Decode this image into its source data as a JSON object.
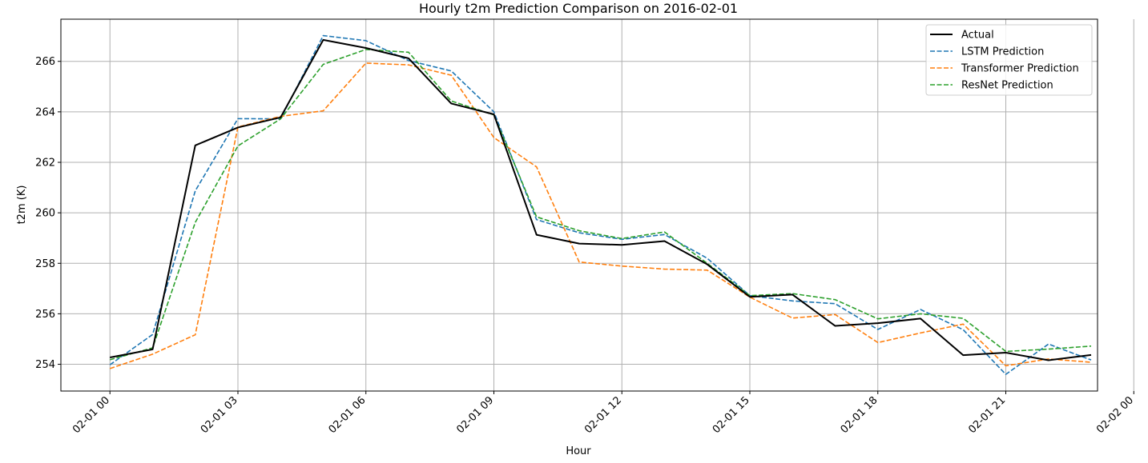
{
  "chart_data": {
    "type": "line",
    "title": "Hourly t2m Prediction Comparison on 2016-02-01",
    "xlabel": "Hour",
    "ylabel": "t2m (K)",
    "xlim": [
      -1.15,
      23.15
    ],
    "ylim": [
      252.94,
      267.67
    ],
    "grid": true,
    "legend_position": "top-right",
    "x": [
      0,
      1,
      2,
      3,
      4,
      5,
      6,
      7,
      8,
      9,
      10,
      11,
      12,
      13,
      14,
      15,
      16,
      17,
      18,
      19,
      20,
      21,
      22,
      23
    ],
    "x_ticks": [
      0,
      3,
      6,
      9,
      12,
      15,
      18,
      21,
      24
    ],
    "x_tick_labels": [
      "02-01 00",
      "02-01 03",
      "02-01 06",
      "02-01 09",
      "02-01 12",
      "02-01 15",
      "02-01 18",
      "02-01 21",
      "02-02 00"
    ],
    "y_ticks": [
      254,
      256,
      258,
      260,
      262,
      264,
      266
    ],
    "y_tick_labels": [
      "254",
      "256",
      "258",
      "260",
      "262",
      "264",
      "266"
    ],
    "series": [
      {
        "name": "Actual",
        "color": "#000000",
        "style": "solid",
        "values": [
          254.27,
          254.59,
          262.67,
          263.38,
          263.78,
          266.85,
          266.53,
          266.12,
          264.33,
          263.9,
          259.13,
          258.78,
          258.73,
          258.88,
          257.96,
          256.67,
          256.76,
          255.52,
          255.63,
          255.81,
          254.36,
          254.46,
          254.16,
          254.37
        ]
      },
      {
        "name": "LSTM Prediction",
        "color": "#1f77b4",
        "style": "dashed",
        "values": [
          253.98,
          255.18,
          260.87,
          263.73,
          263.72,
          267.02,
          266.82,
          266.03,
          265.62,
          264.0,
          259.73,
          259.21,
          258.95,
          259.14,
          258.2,
          256.72,
          256.51,
          256.4,
          255.38,
          256.17,
          255.37,
          253.6,
          254.8,
          254.17
        ]
      },
      {
        "name": "Transformer Prediction",
        "color": "#ff7f0e",
        "style": "dashed",
        "values": [
          253.83,
          254.4,
          255.17,
          263.4,
          263.82,
          264.04,
          265.93,
          265.86,
          265.45,
          262.98,
          261.82,
          258.05,
          257.89,
          257.77,
          257.73,
          256.66,
          255.83,
          255.97,
          254.86,
          255.24,
          255.59,
          253.94,
          254.21,
          254.08
        ]
      },
      {
        "name": "ResNet Prediction",
        "color": "#2ca02c",
        "style": "dashed",
        "values": [
          254.18,
          254.65,
          259.62,
          262.65,
          263.72,
          265.88,
          266.47,
          266.36,
          264.43,
          263.88,
          259.84,
          259.29,
          258.98,
          259.24,
          258.0,
          256.72,
          256.8,
          256.56,
          255.8,
          256.0,
          255.82,
          254.51,
          254.6,
          254.72
        ]
      }
    ]
  }
}
